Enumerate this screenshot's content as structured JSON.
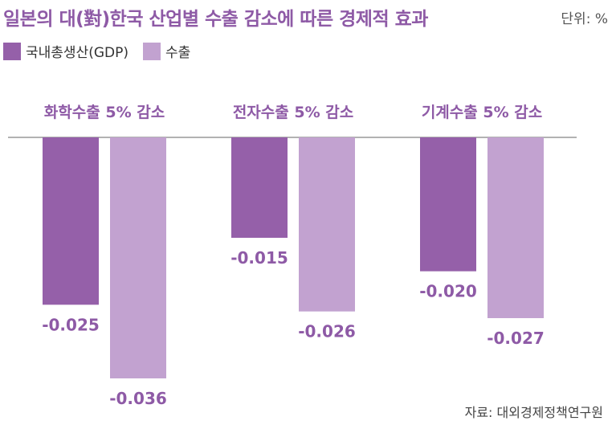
{
  "title": "일본의 대(對)한국 산업별 수출 감소에 따른 경제적 효과",
  "unit": "단위: %",
  "source": "자료: 대외경제정책연구원",
  "colors": {
    "gdp": "#9560a9",
    "export": "#c2a2d0",
    "title": "#8e5aa6",
    "label": "#8e5aa6",
    "baseline": "#999999"
  },
  "legend": [
    {
      "name": "국내총생산(GDP)",
      "color": "#9560a9"
    },
    {
      "name": "수출",
      "color": "#c2a2d0"
    }
  ],
  "chart_data": {
    "type": "bar",
    "categories": [
      "화학수출 5% 감소",
      "전자수출 5% 감소",
      "기계수출 5% 감소"
    ],
    "series": [
      {
        "name": "국내총생산(GDP)",
        "values": [
          -0.025,
          -0.015,
          -0.02
        ],
        "labels": [
          "-0.025",
          "-0.015",
          "-0.020"
        ]
      },
      {
        "name": "수출",
        "values": [
          -0.036,
          -0.026,
          -0.027
        ],
        "labels": [
          "-0.036",
          "-0.026",
          "-0.027"
        ]
      }
    ],
    "ylim": [
      -0.036,
      0
    ],
    "legend_position": "top-left",
    "grid": false
  }
}
